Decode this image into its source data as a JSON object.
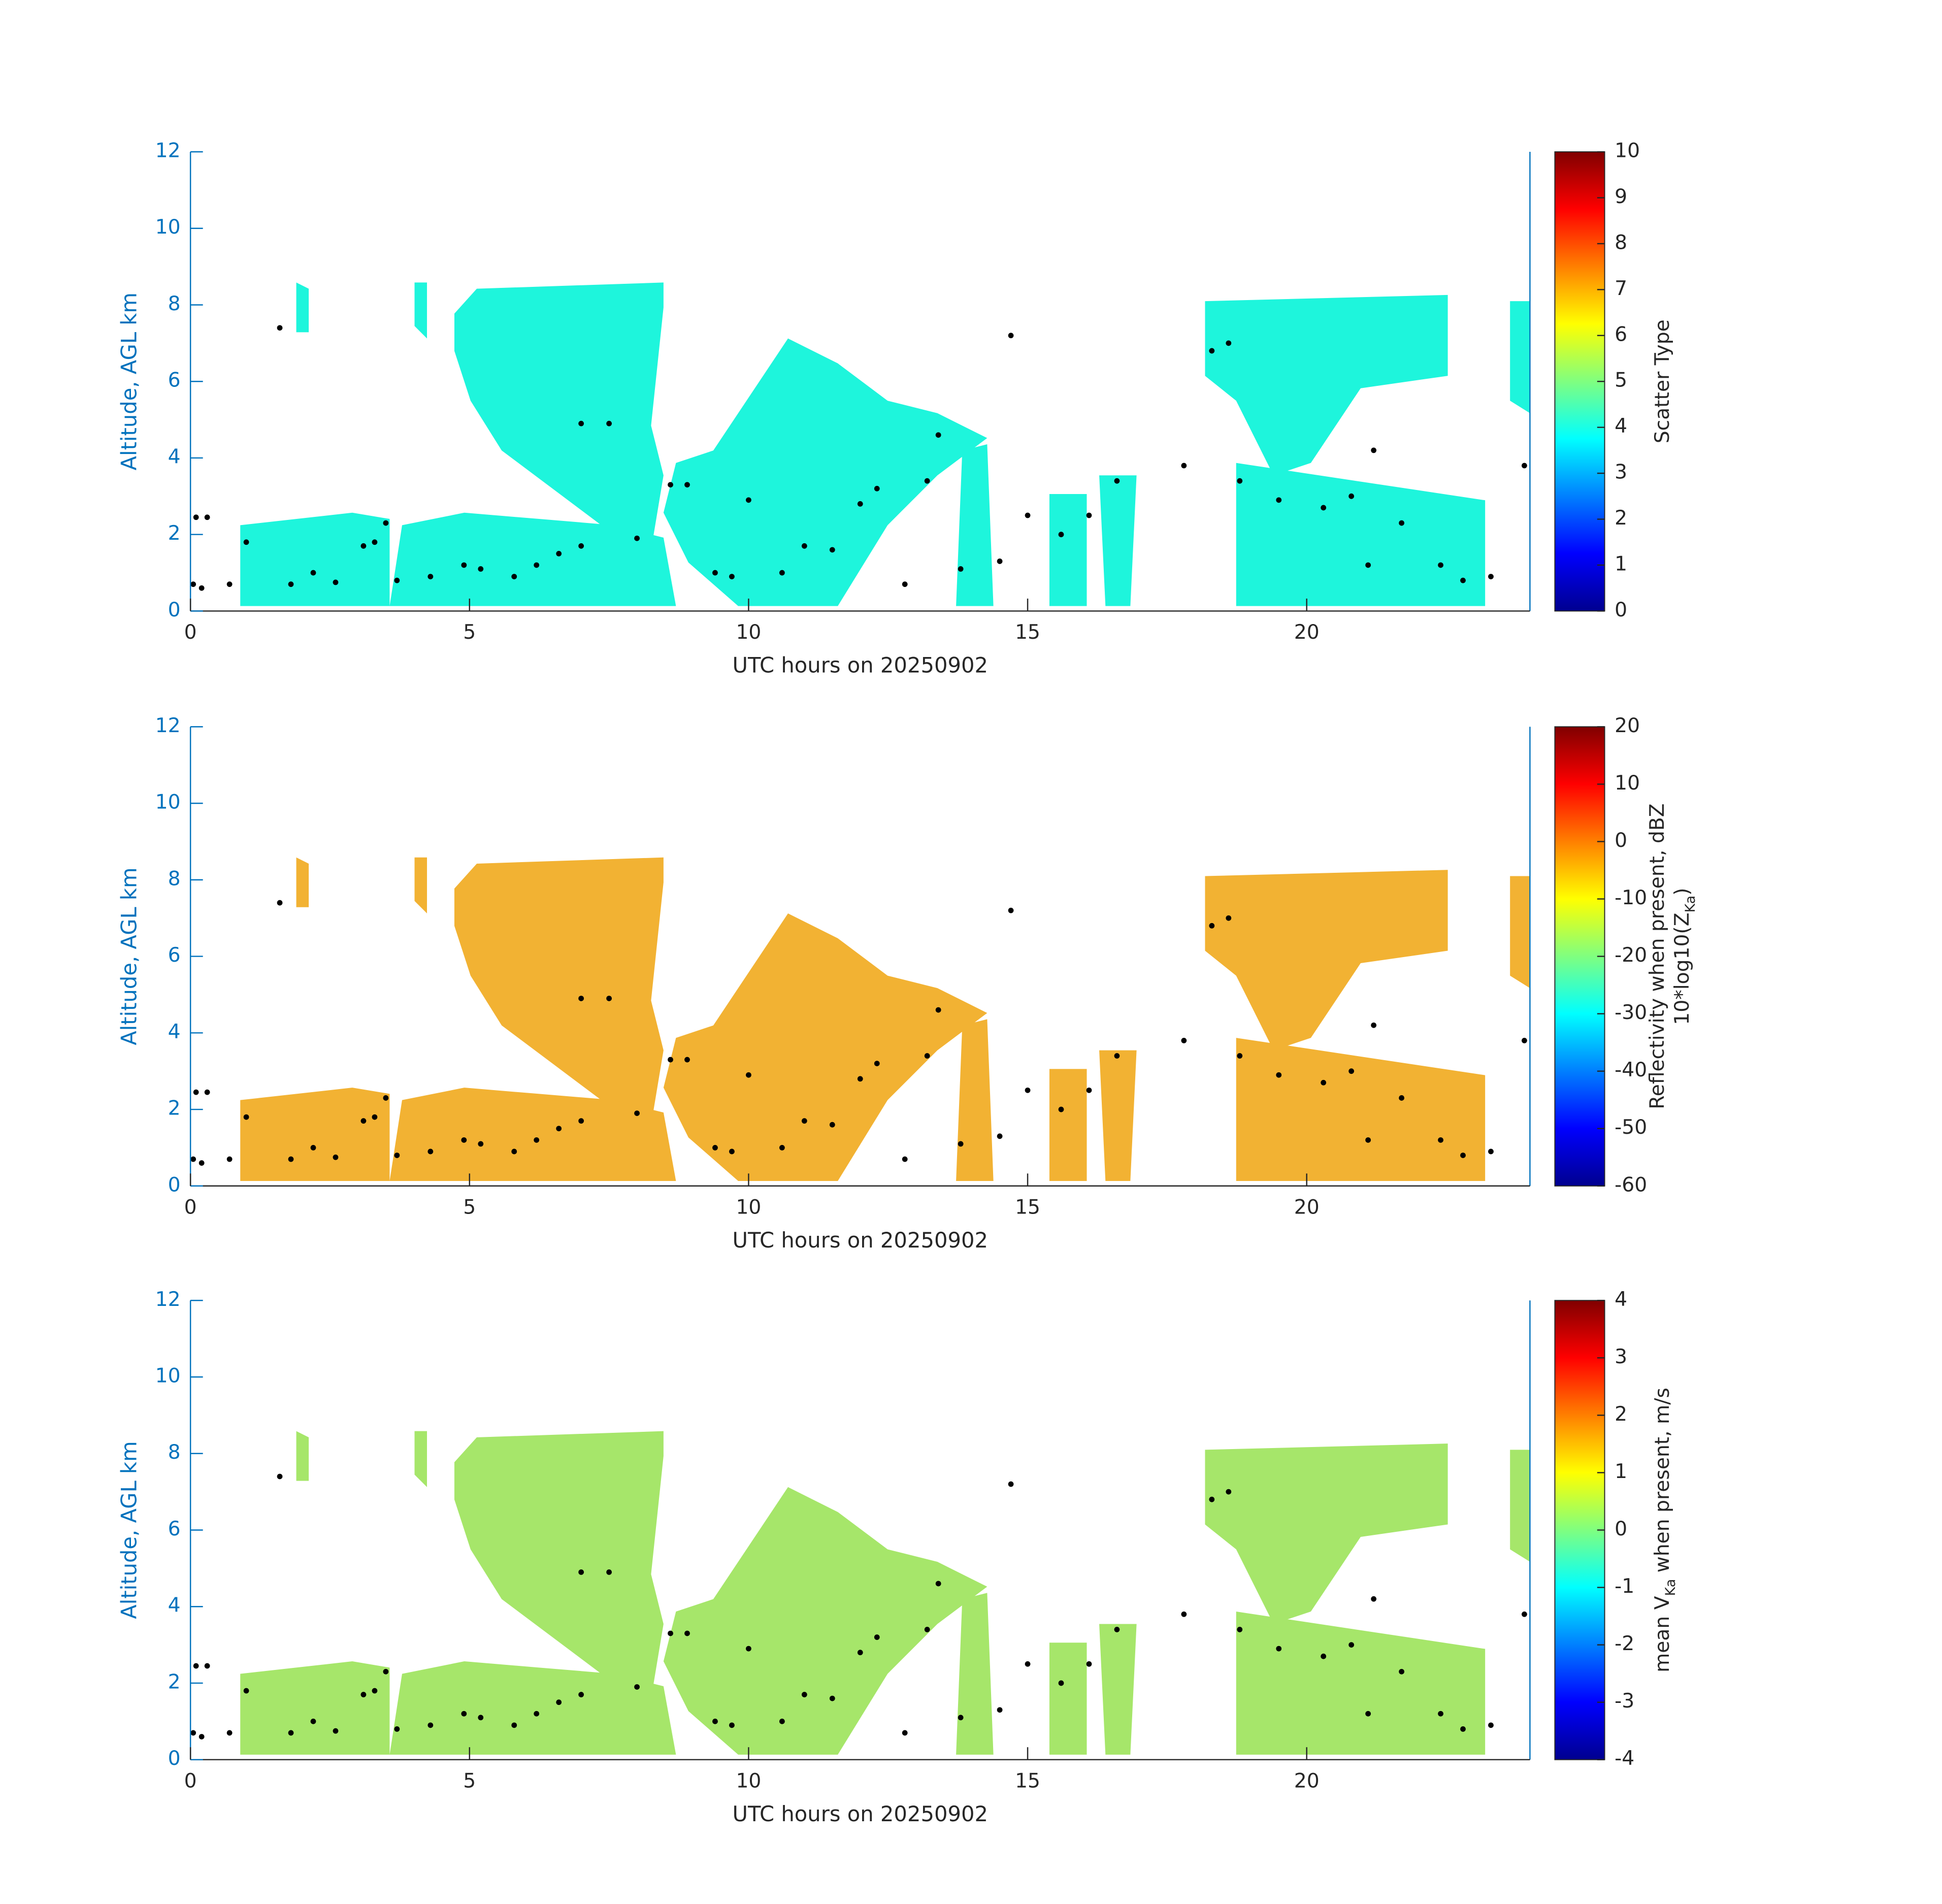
{
  "chart_data": [
    {
      "type": "heatmap",
      "xlabel": "UTC hours on 20250902",
      "ylabel": "Altitude, AGL km",
      "xlim": [
        0,
        24
      ],
      "xticks": [
        0,
        5,
        10,
        15,
        20
      ],
      "ylim": [
        0,
        12
      ],
      "yticks": [
        0,
        2,
        4,
        6,
        8,
        10,
        12
      ],
      "colorbar": {
        "colormap": "jet",
        "lim": [
          0,
          10
        ],
        "ticks": [
          0,
          1,
          2,
          3,
          4,
          5,
          6,
          7,
          8,
          9,
          10
        ],
        "label": [
          [
            {
              "text": "Scatter Type"
            }
          ]
        ]
      },
      "cloud_base": {
        "type": "scatter",
        "color": "#000000",
        "x": [
          0.05,
          0.2,
          0.1,
          0.3,
          0.7,
          1.0,
          1.6,
          1.8,
          2.2,
          2.6,
          3.1,
          3.3,
          3.5,
          3.7,
          4.3,
          4.9,
          5.2,
          5.8,
          6.2,
          6.6,
          7.0,
          7.0,
          7.5,
          8.0,
          8.6,
          8.9,
          9.4,
          9.7,
          10.0,
          10.6,
          11.0,
          11.5,
          12.0,
          12.3,
          12.8,
          13.2,
          13.4,
          13.8,
          14.5,
          14.7,
          15.0,
          15.6,
          16.1,
          16.6,
          17.8,
          18.3,
          18.6,
          18.8,
          19.5,
          20.3,
          20.8,
          21.1,
          21.2,
          21.7,
          22.4,
          22.8,
          23.3,
          23.9
        ],
        "y": [
          0.7,
          0.6,
          2.45,
          2.45,
          0.7,
          1.8,
          7.4,
          0.7,
          1.0,
          0.75,
          1.7,
          1.8,
          2.3,
          0.8,
          0.9,
          1.2,
          1.1,
          0.9,
          1.2,
          1.5,
          1.7,
          4.9,
          4.9,
          1.9,
          3.3,
          3.3,
          1.0,
          0.9,
          2.9,
          1.0,
          1.7,
          1.6,
          2.8,
          3.2,
          0.7,
          3.4,
          4.6,
          1.1,
          1.3,
          7.2,
          2.5,
          2.0,
          2.5,
          3.4,
          3.8,
          6.8,
          7.0,
          3.4,
          2.9,
          2.7,
          3.0,
          1.2,
          4.2,
          2.3,
          1.2,
          0.8,
          0.9,
          3.8
        ]
      }
    },
    {
      "type": "heatmap",
      "xlabel": "UTC hours on 20250902",
      "ylabel": "Altitude, AGL km",
      "xlim": [
        0,
        24
      ],
      "xticks": [
        0,
        5,
        10,
        15,
        20
      ],
      "ylim": [
        0,
        12
      ],
      "yticks": [
        0,
        2,
        4,
        6,
        8,
        10,
        12
      ],
      "colorbar": {
        "colormap": "jet",
        "lim": [
          -60,
          20
        ],
        "ticks": [
          -60,
          -50,
          -40,
          -30,
          -20,
          -10,
          0,
          10,
          20
        ],
        "label": [
          [
            {
              "text": "Reflectivity when present, dBZ"
            }
          ],
          [
            {
              "text": "10*log10(Z"
            },
            {
              "text": "Ka",
              "sub": true
            },
            {
              "text": ")"
            }
          ]
        ]
      },
      "cloud_base": {
        "type": "scatter",
        "color": "#000000",
        "x": [
          0.05,
          0.2,
          0.1,
          0.3,
          0.7,
          1.0,
          1.6,
          1.8,
          2.2,
          2.6,
          3.1,
          3.3,
          3.5,
          3.7,
          4.3,
          4.9,
          5.2,
          5.8,
          6.2,
          6.6,
          7.0,
          7.0,
          7.5,
          8.0,
          8.6,
          8.9,
          9.4,
          9.7,
          10.0,
          10.6,
          11.0,
          11.5,
          12.0,
          12.3,
          12.8,
          13.2,
          13.4,
          13.8,
          14.5,
          14.7,
          15.0,
          15.6,
          16.1,
          16.6,
          17.8,
          18.3,
          18.6,
          18.8,
          19.5,
          20.3,
          20.8,
          21.1,
          21.2,
          21.7,
          22.4,
          22.8,
          23.3,
          23.9
        ],
        "y": [
          0.7,
          0.6,
          2.45,
          2.45,
          0.7,
          1.8,
          7.4,
          0.7,
          1.0,
          0.75,
          1.7,
          1.8,
          2.3,
          0.8,
          0.9,
          1.2,
          1.1,
          0.9,
          1.2,
          1.5,
          1.7,
          4.9,
          4.9,
          1.9,
          3.3,
          3.3,
          1.0,
          0.9,
          2.9,
          1.0,
          1.7,
          1.6,
          2.8,
          3.2,
          0.7,
          3.4,
          4.6,
          1.1,
          1.3,
          7.2,
          2.5,
          2.0,
          2.5,
          3.4,
          3.8,
          6.8,
          7.0,
          3.4,
          2.9,
          2.7,
          3.0,
          1.2,
          4.2,
          2.3,
          1.2,
          0.8,
          0.9,
          3.8
        ]
      }
    },
    {
      "type": "heatmap",
      "xlabel": "UTC hours on 20250902",
      "ylabel": "Altitude, AGL km",
      "xlim": [
        0,
        24
      ],
      "xticks": [
        0,
        5,
        10,
        15,
        20
      ],
      "ylim": [
        0,
        12
      ],
      "yticks": [
        0,
        2,
        4,
        6,
        8,
        10,
        12
      ],
      "colorbar": {
        "colormap": "jet",
        "lim": [
          -4,
          4
        ],
        "ticks": [
          -4,
          -3,
          -2,
          -1,
          0,
          1,
          2,
          3,
          4
        ],
        "label": [
          [
            {
              "text": "mean V"
            },
            {
              "text": "Ka",
              "sub": true
            },
            {
              "text": " when present, m/s"
            }
          ]
        ]
      },
      "cloud_base": {
        "type": "scatter",
        "color": "#000000",
        "x": [
          0.05,
          0.2,
          0.1,
          0.3,
          0.7,
          1.0,
          1.6,
          1.8,
          2.2,
          2.6,
          3.1,
          3.3,
          3.5,
          3.7,
          4.3,
          4.9,
          5.2,
          5.8,
          6.2,
          6.6,
          7.0,
          7.0,
          7.5,
          8.0,
          8.6,
          8.9,
          9.4,
          9.7,
          10.0,
          10.6,
          11.0,
          11.5,
          12.0,
          12.3,
          12.8,
          13.2,
          13.4,
          13.8,
          14.5,
          14.7,
          15.0,
          15.6,
          16.1,
          16.6,
          17.8,
          18.3,
          18.6,
          18.8,
          19.5,
          20.3,
          20.8,
          21.1,
          21.2,
          21.7,
          22.4,
          22.8,
          23.3,
          23.9
        ],
        "y": [
          0.7,
          0.6,
          2.45,
          2.45,
          0.7,
          1.8,
          7.4,
          0.7,
          1.0,
          0.75,
          1.7,
          1.8,
          2.3,
          0.8,
          0.9,
          1.2,
          1.1,
          0.9,
          1.2,
          1.5,
          1.7,
          4.9,
          4.9,
          1.9,
          3.3,
          3.3,
          1.0,
          0.9,
          2.9,
          1.0,
          1.7,
          1.6,
          2.8,
          3.2,
          0.7,
          3.4,
          4.6,
          1.1,
          1.3,
          7.2,
          2.5,
          2.0,
          2.5,
          3.4,
          3.8,
          6.8,
          7.0,
          3.4,
          2.9,
          2.7,
          3.0,
          1.2,
          4.2,
          2.3,
          1.2,
          0.8,
          0.9,
          3.8
        ]
      }
    }
  ]
}
